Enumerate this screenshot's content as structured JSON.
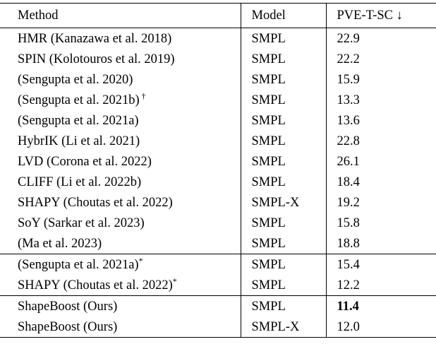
{
  "table": {
    "columns": [
      "Method",
      "Model",
      "PVE-T-SC ↓"
    ],
    "groups": [
      {
        "rows": [
          {
            "method": "HMR (Kanazawa et al. 2018)",
            "marker": "",
            "model": "SMPL",
            "value": "22.9",
            "bold": false
          },
          {
            "method": "SPIN (Kolotouros et al. 2019)",
            "marker": "",
            "model": "SMPL",
            "value": "22.2",
            "bold": false
          },
          {
            "method": "(Sengupta et al. 2020)",
            "marker": "",
            "model": "SMPL",
            "value": "15.9",
            "bold": false
          },
          {
            "method": "(Sengupta et al. 2021b)",
            "marker": " †",
            "model": "SMPL",
            "value": "13.3",
            "bold": false
          },
          {
            "method": "(Sengupta et al. 2021a)",
            "marker": "",
            "model": "SMPL",
            "value": "13.6",
            "bold": false
          },
          {
            "method": "HybrIK (Li et al. 2021)",
            "marker": "",
            "model": "SMPL",
            "value": "22.8",
            "bold": false
          },
          {
            "method": "LVD (Corona et al. 2022)",
            "marker": "",
            "model": "SMPL",
            "value": "26.1",
            "bold": false
          },
          {
            "method": "CLIFF (Li et al. 2022b)",
            "marker": "",
            "model": "SMPL",
            "value": "18.4",
            "bold": false
          },
          {
            "method": "SHAPY (Choutas et al. 2022)",
            "marker": "",
            "model": "SMPL-X",
            "value": "19.2",
            "bold": false
          },
          {
            "method": "SoY (Sarkar et al. 2023)",
            "marker": "",
            "model": "SMPL",
            "value": "15.8",
            "bold": false
          },
          {
            "method": "(Ma et al. 2023)",
            "marker": "",
            "model": "SMPL",
            "value": "18.8",
            "bold": false
          }
        ]
      },
      {
        "rows": [
          {
            "method": "(Sengupta et al. 2021a)",
            "marker": "*",
            "model": "SMPL",
            "value": "15.4",
            "bold": false
          },
          {
            "method": "SHAPY (Choutas et al. 2022)",
            "marker": "*",
            "model": "SMPL",
            "value": "12.2",
            "bold": false
          }
        ]
      },
      {
        "rows": [
          {
            "method": "ShapeBoost (Ours)",
            "marker": "",
            "model": "SMPL",
            "value": "11.4",
            "bold": true
          },
          {
            "method": "ShapeBoost (Ours)",
            "marker": "",
            "model": "SMPL-X",
            "value": "12.0",
            "bold": false
          }
        ]
      }
    ]
  }
}
